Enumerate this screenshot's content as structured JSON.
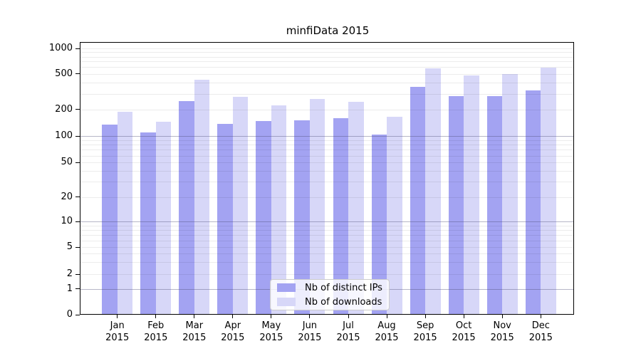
{
  "title": "minfiData 2015",
  "y_axis": {
    "tick_labels": [
      "0",
      "1",
      "2",
      "5",
      "10",
      "20",
      "50",
      "100",
      "200",
      "500",
      "1000"
    ]
  },
  "x_axis": {
    "months": [
      "Jan",
      "Feb",
      "Mar",
      "Apr",
      "May",
      "Jun",
      "Jul",
      "Aug",
      "Sep",
      "Oct",
      "Nov",
      "Dec"
    ],
    "year": "2015"
  },
  "legend": {
    "items": [
      {
        "label": "Nb of distinct IPs",
        "color": "#a3a3f2"
      },
      {
        "label": "Nb of downloads",
        "color": "#d7d7f8"
      }
    ]
  },
  "chart_data": {
    "type": "bar",
    "title": "minfiData 2015",
    "categories": [
      "Jan 2015",
      "Feb 2015",
      "Mar 2015",
      "Apr 2015",
      "May 2015",
      "Jun 2015",
      "Jul 2015",
      "Aug 2015",
      "Sep 2015",
      "Oct 2015",
      "Nov 2015",
      "Dec 2015"
    ],
    "series": [
      {
        "name": "Nb of distinct IPs",
        "color": "#a3a3f2",
        "values": [
          135,
          110,
          247,
          137,
          149,
          150,
          158,
          105,
          360,
          279,
          279,
          324
        ]
      },
      {
        "name": "Nb of downloads",
        "color": "#d7d7f8",
        "values": [
          187,
          146,
          431,
          274,
          221,
          263,
          242,
          165,
          580,
          478,
          503,
          598
        ]
      }
    ],
    "xlabel": "",
    "ylabel": "",
    "yscale": "pseudo-log",
    "ylim": [
      0,
      1000
    ],
    "yticks": [
      0,
      1,
      2,
      5,
      10,
      20,
      50,
      100,
      200,
      500,
      1000
    ],
    "grid": true,
    "legend_position": "lower center"
  }
}
